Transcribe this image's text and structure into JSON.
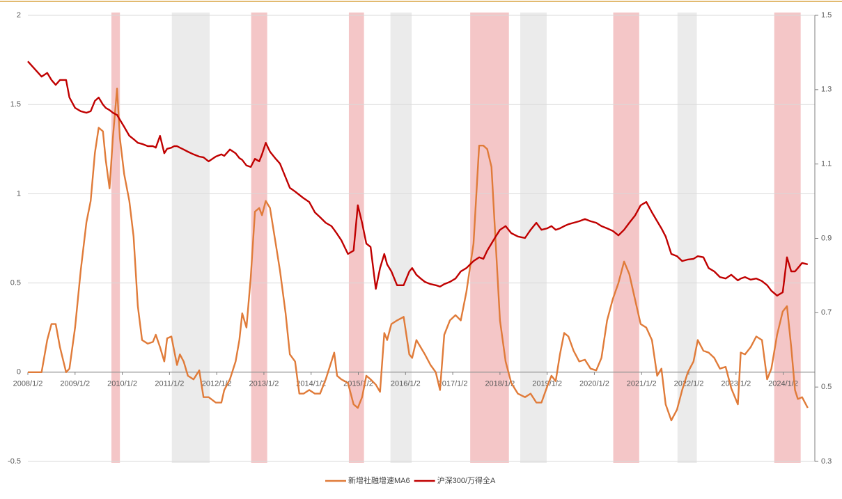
{
  "chart_data": {
    "type": "line",
    "x": [
      2008.0,
      2008.29,
      2008.41,
      2008.5,
      2008.59,
      2008.68,
      2008.81,
      2008.88,
      2009.0,
      2009.12,
      2009.24,
      2009.33,
      2009.42,
      2009.5,
      2009.59,
      2009.65,
      2009.73,
      2009.8,
      2009.89,
      2009.95,
      2010.04,
      2010.15,
      2010.24,
      2010.33,
      2010.42,
      2010.54,
      2010.65,
      2010.71,
      2010.8,
      2010.89,
      2010.95,
      2011.04,
      2011.1,
      2011.16,
      2011.22,
      2011.3,
      2011.39,
      2011.51,
      2011.63,
      2011.72,
      2011.83,
      2011.98,
      2012.1,
      2012.16,
      2012.28,
      2012.4,
      2012.48,
      2012.54,
      2012.63,
      2012.72,
      2012.81,
      2012.9,
      2012.96,
      2013.04,
      2013.13,
      2013.25,
      2013.34,
      2013.46,
      2013.55,
      2013.66,
      2013.75,
      2013.84,
      2013.96,
      2014.08,
      2014.19,
      2014.31,
      2014.43,
      2014.49,
      2014.55,
      2014.64,
      2014.78,
      2014.9,
      2014.99,
      2015.08,
      2015.17,
      2015.26,
      2015.37,
      2015.46,
      2015.55,
      2015.61,
      2015.7,
      2015.82,
      2015.96,
      2016.08,
      2016.14,
      2016.23,
      2016.32,
      2016.41,
      2016.53,
      2016.64,
      2016.73,
      2016.82,
      2016.94,
      2017.06,
      2017.17,
      2017.29,
      2017.44,
      2017.56,
      2017.65,
      2017.73,
      2017.82,
      2017.91,
      2018.0,
      2018.12,
      2018.24,
      2018.38,
      2018.53,
      2018.65,
      2018.77,
      2018.88,
      2019.0,
      2019.09,
      2019.18,
      2019.27,
      2019.36,
      2019.45,
      2019.56,
      2019.68,
      2019.8,
      2019.92,
      2020.04,
      2020.15,
      2020.27,
      2020.39,
      2020.51,
      2020.63,
      2020.74,
      2020.86,
      2020.98,
      2021.1,
      2021.22,
      2021.33,
      2021.42,
      2021.51,
      2021.63,
      2021.75,
      2021.86,
      2021.98,
      2022.1,
      2022.19,
      2022.31,
      2022.42,
      2022.54,
      2022.66,
      2022.78,
      2022.9,
      2023.04,
      2023.1,
      2023.19,
      2023.31,
      2023.43,
      2023.55,
      2023.66,
      2023.75,
      2023.87,
      2023.99,
      2024.08,
      2024.17,
      2024.25,
      2024.31,
      2024.4,
      2024.52
    ],
    "series": [
      {
        "name": "新增社融增速MA6",
        "color": "#e07b39",
        "axis": "y",
        "values": [
          0,
          0,
          0.18,
          0.27,
          0.27,
          0.14,
          0,
          0.02,
          0.25,
          0.57,
          0.84,
          0.96,
          1.23,
          1.37,
          1.35,
          1.19,
          1.03,
          1.31,
          1.59,
          1.31,
          1.11,
          0.96,
          0.76,
          0.37,
          0.18,
          0.16,
          0.17,
          0.21,
          0.14,
          0.06,
          0.19,
          0.2,
          0.12,
          0.04,
          0.1,
          0.06,
          -0.02,
          -0.04,
          0.01,
          -0.14,
          -0.14,
          -0.17,
          -0.17,
          -0.1,
          -0.04,
          0.06,
          0.18,
          0.33,
          0.25,
          0.53,
          0.9,
          0.92,
          0.88,
          0.96,
          0.92,
          0.72,
          0.57,
          0.33,
          0.1,
          0.06,
          -0.12,
          -0.12,
          -0.1,
          -0.12,
          -0.12,
          -0.04,
          0.06,
          0.11,
          -0.02,
          -0.04,
          -0.06,
          -0.18,
          -0.2,
          -0.14,
          -0.02,
          -0.04,
          -0.07,
          -0.11,
          0.22,
          0.18,
          0.27,
          0.29,
          0.31,
          0.1,
          0.08,
          0.18,
          0.14,
          0.1,
          0.04,
          0,
          -0.1,
          0.21,
          0.29,
          0.32,
          0.29,
          0.45,
          0.72,
          1.27,
          1.27,
          1.25,
          1.15,
          0.72,
          0.29,
          0.06,
          -0.06,
          -0.12,
          -0.14,
          -0.12,
          -0.17,
          -0.17,
          -0.08,
          -0.02,
          -0.05,
          0.1,
          0.22,
          0.2,
          0.12,
          0.06,
          0.07,
          0.02,
          0.01,
          0.08,
          0.29,
          0.41,
          0.5,
          0.62,
          0.55,
          0.41,
          0.27,
          0.25,
          0.18,
          -0.02,
          0.02,
          -0.18,
          -0.27,
          -0.21,
          -0.1,
          0,
          0.06,
          0.18,
          0.12,
          0.11,
          0.08,
          0.02,
          0.03,
          -0.09,
          -0.18,
          0.11,
          0.1,
          0.14,
          0.2,
          0.18,
          -0.04,
          0.02,
          0.21,
          0.34,
          0.37,
          0.14,
          -0.1,
          -0.15,
          -0.14,
          -0.2
        ]
      },
      {
        "name": "沪深300/万得全A",
        "color": "#c00000",
        "axis": "y2",
        "values": [
          1.376,
          1.335,
          1.345,
          1.326,
          1.313,
          1.326,
          1.326,
          1.279,
          1.251,
          1.242,
          1.238,
          1.242,
          1.27,
          1.279,
          1.26,
          1.251,
          1.245,
          1.238,
          1.232,
          1.219,
          1.2,
          1.176,
          1.167,
          1.157,
          1.154,
          1.148,
          1.148,
          1.144,
          1.176,
          1.129,
          1.141,
          1.144,
          1.148,
          1.148,
          1.144,
          1.139,
          1.133,
          1.126,
          1.12,
          1.118,
          1.107,
          1.12,
          1.126,
          1.122,
          1.139,
          1.129,
          1.116,
          1.111,
          1.096,
          1.092,
          1.114,
          1.107,
          1.126,
          1.157,
          1.133,
          1.114,
          1.101,
          1.064,
          1.036,
          1.026,
          1.017,
          1.008,
          0.998,
          0.97,
          0.957,
          0.942,
          0.933,
          0.923,
          0.912,
          0.895,
          0.858,
          0.867,
          0.989,
          0.942,
          0.886,
          0.877,
          0.764,
          0.82,
          0.858,
          0.83,
          0.811,
          0.774,
          0.774,
          0.811,
          0.82,
          0.802,
          0.792,
          0.783,
          0.777,
          0.774,
          0.77,
          0.777,
          0.783,
          0.792,
          0.811,
          0.82,
          0.839,
          0.849,
          0.845,
          0.867,
          0.886,
          0.905,
          0.923,
          0.933,
          0.914,
          0.905,
          0.901,
          0.923,
          0.942,
          0.923,
          0.927,
          0.933,
          0.923,
          0.927,
          0.933,
          0.938,
          0.942,
          0.946,
          0.952,
          0.946,
          0.942,
          0.933,
          0.927,
          0.92,
          0.908,
          0.923,
          0.942,
          0.961,
          0.989,
          0.998,
          0.97,
          0.946,
          0.927,
          0.905,
          0.858,
          0.852,
          0.839,
          0.843,
          0.845,
          0.852,
          0.849,
          0.82,
          0.811,
          0.796,
          0.792,
          0.802,
          0.787,
          0.792,
          0.796,
          0.789,
          0.792,
          0.785,
          0.774,
          0.759,
          0.746,
          0.755,
          0.849,
          0.811,
          0.811,
          0.82,
          0.834,
          0.83
        ]
      }
    ],
    "xlim": [
      2008,
      2024.67
    ],
    "xticks": [
      {
        "value": 2008.0,
        "label": "2008/1/2"
      },
      {
        "value": 2009.0,
        "label": "2009/1/2"
      },
      {
        "value": 2010.0,
        "label": "2010/1/2"
      },
      {
        "value": 2011.0,
        "label": "2011/1/2"
      },
      {
        "value": 2012.0,
        "label": "2012/1/2"
      },
      {
        "value": 2013.0,
        "label": "2013/1/2"
      },
      {
        "value": 2014.0,
        "label": "2014/1/2"
      },
      {
        "value": 2015.0,
        "label": "2015/1/2"
      },
      {
        "value": 2016.0,
        "label": "2016/1/2"
      },
      {
        "value": 2017.0,
        "label": "2017/1/2"
      },
      {
        "value": 2018.0,
        "label": "2018/1/2"
      },
      {
        "value": 2019.0,
        "label": "2019/1/2"
      },
      {
        "value": 2020.0,
        "label": "2020/1/2"
      },
      {
        "value": 2021.0,
        "label": "2021/1/2"
      },
      {
        "value": 2022.0,
        "label": "2022/1/2"
      },
      {
        "value": 2023.0,
        "label": "2023/1/2"
      },
      {
        "value": 2024.0,
        "label": "2024/1/2"
      }
    ],
    "ylim": [
      -0.5,
      2
    ],
    "yticks": [
      -0.5,
      0,
      0.5,
      1,
      1.5,
      2
    ],
    "y2lim": [
      0.3,
      1.5
    ],
    "y2ticks": [
      0.3,
      0.5,
      0.7,
      0.9,
      1.1,
      1.3,
      1.5
    ],
    "grid": true,
    "legend": "bottom",
    "shaded_regions": [
      {
        "start": 2009.77,
        "end": 2009.95,
        "color": "#f4c6c7"
      },
      {
        "start": 2011.05,
        "end": 2011.85,
        "color": "#ebebeb"
      },
      {
        "start": 2012.73,
        "end": 2013.07,
        "color": "#f4c6c7"
      },
      {
        "start": 2014.8,
        "end": 2015.12,
        "color": "#f4c6c7"
      },
      {
        "start": 2015.68,
        "end": 2016.13,
        "color": "#ebebeb"
      },
      {
        "start": 2017.37,
        "end": 2018.19,
        "color": "#f4c6c7"
      },
      {
        "start": 2018.43,
        "end": 2018.99,
        "color": "#ebebeb"
      },
      {
        "start": 2020.4,
        "end": 2020.95,
        "color": "#f4c6c7"
      },
      {
        "start": 2021.76,
        "end": 2022.17,
        "color": "#ebebeb"
      },
      {
        "start": 2023.81,
        "end": 2024.37,
        "color": "#f4c6c7"
      }
    ]
  }
}
